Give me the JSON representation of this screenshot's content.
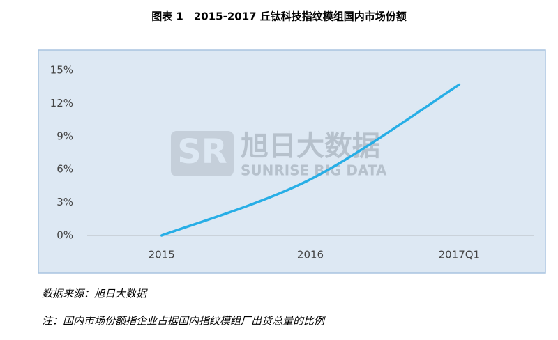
{
  "chart_data": {
    "type": "line",
    "title": "图表 1　2015-2017 丘钛科技指纹模组国内市场份额",
    "categories": [
      "2015",
      "2016",
      "2017Q1"
    ],
    "series": [
      {
        "name": "丘钛科技指纹模组国内市场份额",
        "color": "#27aee6",
        "values": [
          0,
          5.1,
          13.7
        ]
      }
    ],
    "ylim": [
      0,
      15
    ],
    "yticks": [
      {
        "value": 0,
        "label": "0%"
      },
      {
        "value": 3,
        "label": "3%"
      },
      {
        "value": 6,
        "label": "6%"
      },
      {
        "value": 9,
        "label": "9%"
      },
      {
        "value": 12,
        "label": "12%"
      },
      {
        "value": 15,
        "label": "15%"
      }
    ],
    "watermark": {
      "name": "旭日大数据",
      "english": "SUNRISE BIG DATA"
    },
    "source": "数据来源：旭日大数据",
    "note": "注：国内市场份额指企业占据国内指纹模组厂出货总量的比例"
  }
}
